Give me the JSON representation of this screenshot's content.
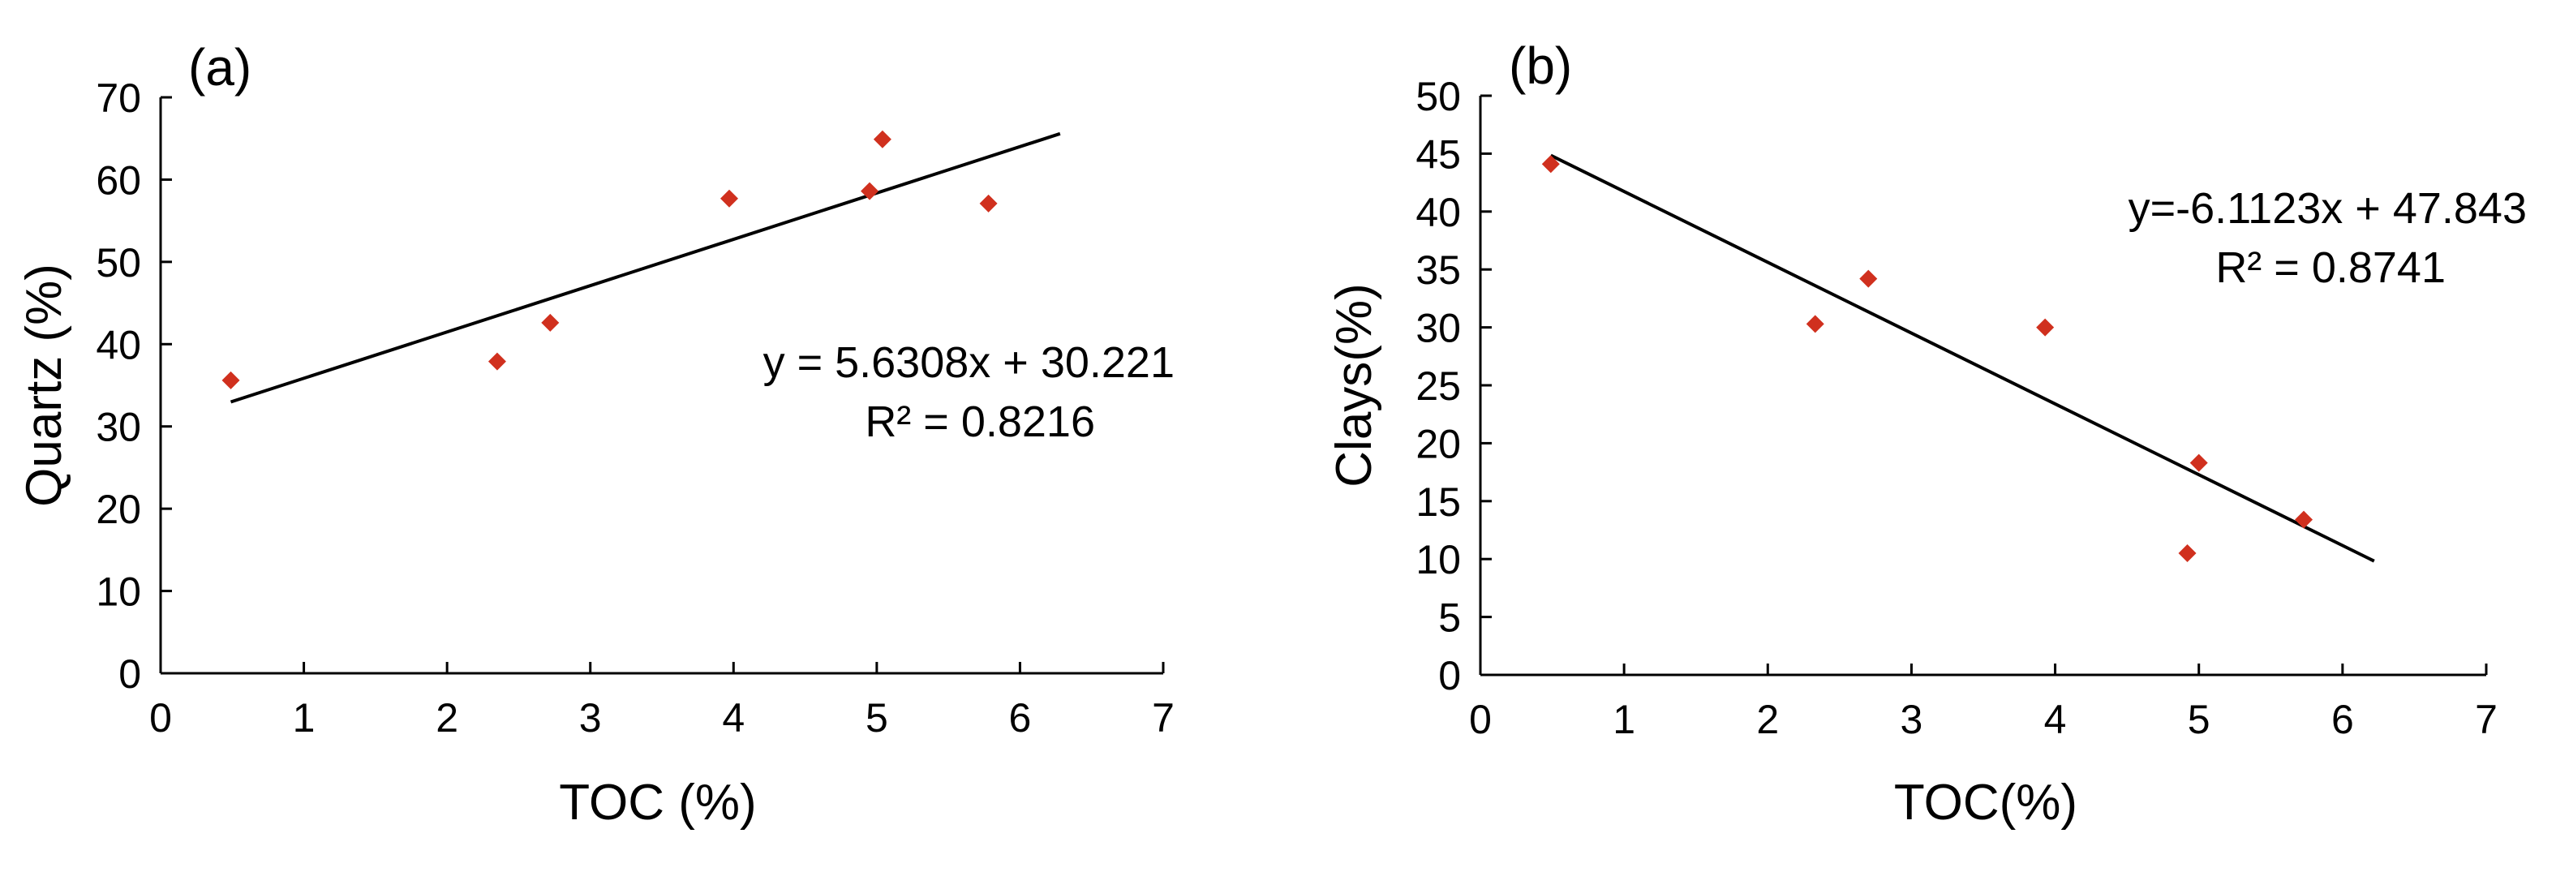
{
  "chart_data": [
    {
      "type": "scatter",
      "panel_label": "(a)",
      "xlabel": "TOC (%)",
      "ylabel": "Quartz (%)",
      "xlim": [
        0,
        7
      ],
      "ylim": [
        0,
        70
      ],
      "xticks": [
        0,
        1,
        2,
        3,
        4,
        5,
        6,
        7
      ],
      "yticks": [
        0,
        10,
        20,
        30,
        40,
        50,
        60,
        70
      ],
      "marker_color": "#d0301e",
      "marker": "diamond",
      "points": [
        {
          "x": 0.49,
          "y": 35.6
        },
        {
          "x": 2.35,
          "y": 37.9
        },
        {
          "x": 2.72,
          "y": 42.6
        },
        {
          "x": 3.97,
          "y": 57.7
        },
        {
          "x": 4.95,
          "y": 58.6
        },
        {
          "x": 5.04,
          "y": 64.9
        },
        {
          "x": 5.78,
          "y": 57.1
        }
      ],
      "trendline": {
        "slope": 5.6308,
        "intercept": 30.221,
        "x_range": [
          0.49,
          6.28
        ]
      },
      "equation": "y = 5.6308x + 30.221",
      "r_squared": "R² = 0.8216"
    },
    {
      "type": "scatter",
      "panel_label": "(b)",
      "xlabel": "TOC(%)",
      "ylabel": "Clays(%)",
      "xlim": [
        0,
        7
      ],
      "ylim": [
        0,
        50
      ],
      "xticks": [
        0,
        1,
        2,
        3,
        4,
        5,
        6,
        7
      ],
      "yticks": [
        0,
        5,
        10,
        15,
        20,
        25,
        30,
        35,
        40,
        45,
        50
      ],
      "marker_color": "#d0301e",
      "marker": "diamond",
      "points": [
        {
          "x": 0.49,
          "y": 44.1
        },
        {
          "x": 2.33,
          "y": 30.3
        },
        {
          "x": 2.7,
          "y": 34.2
        },
        {
          "x": 3.93,
          "y": 30.0
        },
        {
          "x": 4.92,
          "y": 10.5
        },
        {
          "x": 5.0,
          "y": 18.3
        },
        {
          "x": 5.73,
          "y": 13.4
        }
      ],
      "trendline": {
        "slope": -6.1123,
        "intercept": 47.843,
        "x_range": [
          0.49,
          6.22
        ]
      },
      "equation": "y=-6.1123x + 47.843",
      "r_squared": "R² = 0.8741"
    }
  ]
}
